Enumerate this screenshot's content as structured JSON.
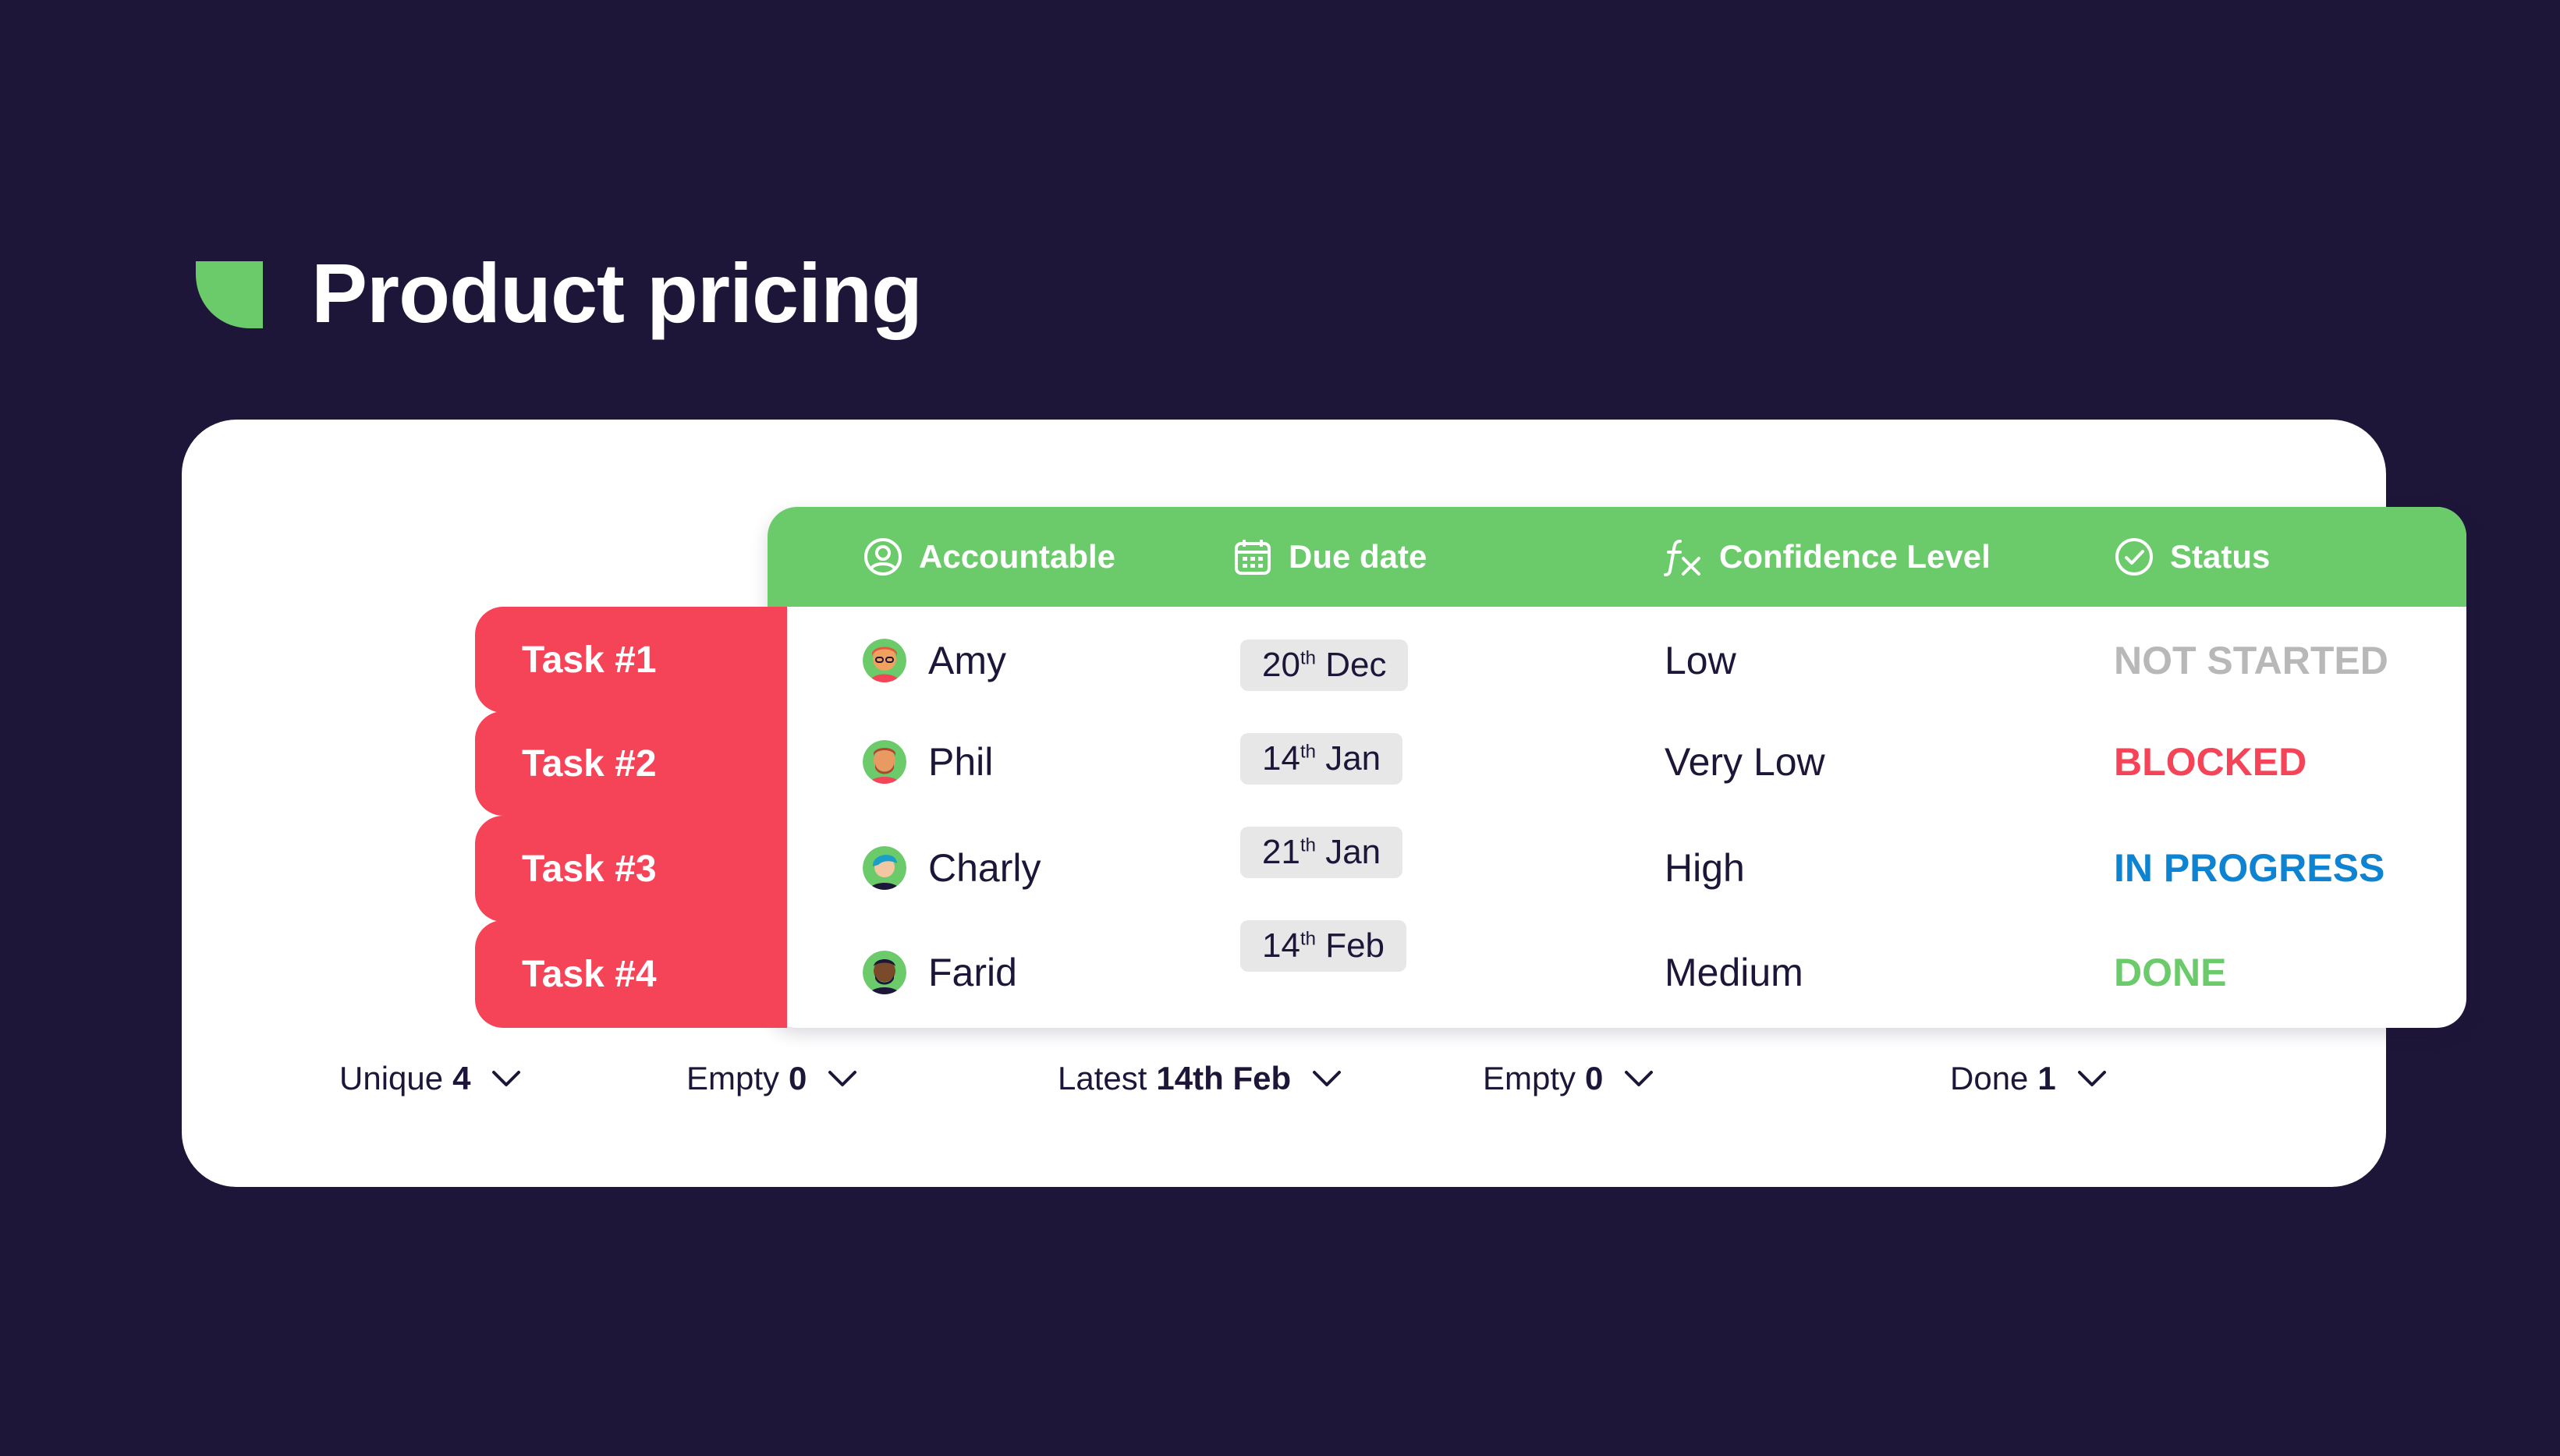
{
  "title": "Product pricing",
  "colors": {
    "background": "#1e1639",
    "accent_green": "#6bcb6b",
    "task_red": "#f54458",
    "status_grey": "#b8b8b8",
    "status_red": "#f54458",
    "status_blue": "#0d83d1",
    "status_green": "#6bcb6b"
  },
  "columns": [
    {
      "label": "Accountable",
      "icon": "person-circle-icon"
    },
    {
      "label": "Due date",
      "icon": "calendar-icon"
    },
    {
      "label": "Confidence Level",
      "icon": "formula-fx-icon"
    },
    {
      "label": "Status",
      "icon": "check-circle-icon"
    }
  ],
  "rows": [
    {
      "task": "Task #1",
      "person": "Amy",
      "date_day": "20",
      "date_sup": "th",
      "date_month": "Dec",
      "confidence": "Low",
      "status": "NOT STARTED"
    },
    {
      "task": "Task #2",
      "person": "Phil",
      "date_day": "14",
      "date_sup": "th",
      "date_month": "Jan",
      "confidence": "Very Low",
      "status": "BLOCKED"
    },
    {
      "task": "Task #3",
      "person": "Charly",
      "date_day": "21",
      "date_sup": "th",
      "date_month": "Jan",
      "confidence": "High",
      "status": "IN PROGRESS"
    },
    {
      "task": "Task #4",
      "person": "Farid",
      "date_day": "14",
      "date_sup": "th",
      "date_month": "Feb",
      "confidence": "Medium",
      "status": "DONE"
    }
  ],
  "footer": [
    {
      "label": "Unique",
      "value": "4"
    },
    {
      "label": "Empty",
      "value": "0"
    },
    {
      "label": "Latest",
      "value": "14th Feb"
    },
    {
      "label": "Empty",
      "value": "0"
    },
    {
      "label": "Done",
      "value": "1"
    }
  ]
}
